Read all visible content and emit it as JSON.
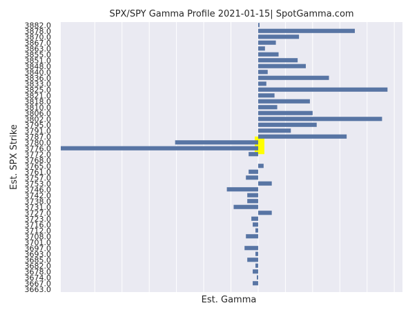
{
  "chart_data": {
    "type": "bar",
    "orientation": "horizontal",
    "title": "SPX/SPY Gamma Profile 2021-01-15| SpotGamma.com",
    "xlabel": "Est. Gamma",
    "ylabel": "Est. SPX Strike",
    "x_tick_labels_shown": false,
    "grid": true,
    "background_color": "#eaeaf2",
    "grid_color": "#ffffff",
    "bar_color": "#5875a4",
    "highlight_color": "#ffff00",
    "highlight_strikes": [
      "3780.0",
      "3776.0"
    ],
    "xlim": [
      -1.45,
      1.06
    ],
    "categories": [
      "3882.0",
      "3878.0",
      "3870.0",
      "3867.0",
      "3863.0",
      "3855.0",
      "3851.0",
      "3848.0",
      "3840.0",
      "3836.0",
      "3833.0",
      "3825.0",
      "3821.0",
      "3818.0",
      "3810.0",
      "3806.0",
      "3802.0",
      "3795.0",
      "3791.0",
      "3787.0",
      "3780.0",
      "3776.0",
      "3772.0",
      "3768.0",
      "3765.0",
      "3761.0",
      "3757.0",
      "3753.0",
      "3746.0",
      "3742.0",
      "3738.0",
      "3731.0",
      "3727.0",
      "3723.0",
      "3716.0",
      "3712.0",
      "3708.0",
      "3701.0",
      "3697.0",
      "3693.0",
      "3685.0",
      "3682.0",
      "3678.0",
      "3674.0",
      "3667.0",
      "3663.0"
    ],
    "values": [
      0.01,
      0.71,
      0.3,
      0.13,
      0.05,
      0.15,
      0.29,
      0.35,
      0.07,
      0.52,
      0.06,
      0.95,
      0.12,
      0.38,
      0.14,
      0.4,
      0.91,
      0.43,
      0.24,
      0.65,
      -0.61,
      -1.45,
      -0.07,
      0,
      0.04,
      -0.07,
      -0.09,
      0.1,
      -0.23,
      -0.08,
      -0.08,
      -0.18,
      0.1,
      -0.05,
      -0.04,
      -0.02,
      -0.09,
      0,
      -0.1,
      -0.02,
      -0.08,
      -0.02,
      -0.04,
      -0.01,
      -0.04,
      0
    ]
  }
}
